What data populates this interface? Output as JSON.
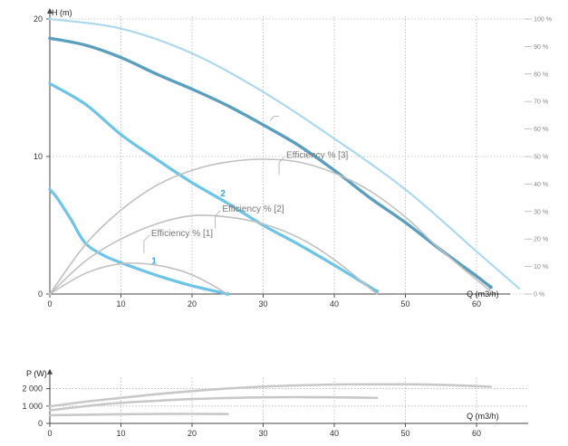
{
  "chart_data": [
    {
      "type": "line",
      "xlabel": "Q (m3/h)",
      "ylabel": "H (m)",
      "xlim": [
        0,
        66
      ],
      "ylim": [
        0,
        20
      ],
      "x_ticks": [
        "0",
        "10",
        "20",
        "30",
        "40",
        "50",
        "60"
      ],
      "y_ticks": [
        "0",
        "10",
        "20"
      ],
      "right_axis_ticks": [
        "0 %",
        "10 %",
        "20 %",
        "30 %",
        "40 %",
        "50 %",
        "60 %",
        "70 %",
        "80 %",
        "90 %",
        "100 %"
      ],
      "grid": true,
      "colors": {
        "pump": "#6cc4e8",
        "pump_outer": "#5a9fc0",
        "efficiency": "#c0c0c0",
        "max_curve": "#a9d8ef"
      },
      "annotations": [
        {
          "label": "Efficiency % [1]",
          "x": 14,
          "y": 4.4
        },
        {
          "label": "Efficiency % [2]",
          "x": 24,
          "y": 6.2
        },
        {
          "label": "Efficiency % [3]",
          "x": 33,
          "y": 10.1
        }
      ],
      "series": [
        {
          "name": "1",
          "role": "pump",
          "label_at": [
            14.3,
            2.2
          ],
          "x": [
            0,
            1,
            3,
            5,
            8,
            12,
            16,
            20,
            25
          ],
          "y": [
            7.6,
            7.0,
            5.4,
            3.7,
            2.7,
            1.9,
            1.2,
            0.6,
            0
          ]
        },
        {
          "name": "2",
          "role": "pump",
          "label_at": [
            24,
            7.1
          ],
          "x": [
            0,
            5,
            10,
            15,
            20,
            25,
            30,
            35,
            40,
            46
          ],
          "y": [
            15.3,
            13.8,
            11.6,
            9.8,
            8.1,
            6.6,
            5.0,
            3.6,
            2.1,
            0.2
          ]
        },
        {
          "name": "",
          "role": "pump-max",
          "x": [
            0,
            5,
            10,
            15,
            20,
            25,
            30,
            35,
            40,
            45,
            50,
            55,
            60,
            62
          ],
          "y": [
            18.6,
            18.1,
            17.2,
            16.0,
            14.9,
            13.7,
            12.3,
            10.8,
            9.0,
            7.0,
            5.2,
            3.2,
            1.3,
            0.5
          ]
        },
        {
          "name": "",
          "role": "max-curve",
          "x": [
            0,
            10,
            20,
            30,
            40,
            50,
            60,
            66
          ],
          "y": [
            20,
            19.3,
            17.5,
            14.7,
            11.3,
            7.6,
            3.1,
            0.4
          ]
        },
        {
          "name": "",
          "role": "efficiency-1",
          "x": [
            0,
            5,
            10,
            15,
            20,
            25
          ],
          "y": [
            0,
            1.5,
            2.2,
            2.1,
            1.4,
            0
          ]
        },
        {
          "name": "",
          "role": "efficiency-2",
          "x": [
            0,
            5,
            10,
            15,
            20,
            25,
            30,
            35,
            40,
            46
          ],
          "y": [
            0,
            2.4,
            4.0,
            5.1,
            5.7,
            5.6,
            5.1,
            4.1,
            2.5,
            0
          ]
        },
        {
          "name": "",
          "role": "efficiency-3",
          "x": [
            0,
            5,
            10,
            15,
            20,
            25,
            30,
            35,
            40,
            45,
            50,
            55,
            62
          ],
          "y": [
            0,
            3.6,
            6.1,
            7.9,
            9.0,
            9.6,
            9.8,
            9.6,
            8.8,
            7.5,
            5.6,
            3.2,
            0.2
          ]
        }
      ]
    },
    {
      "type": "line",
      "xlabel": "Q (m3/h)",
      "ylabel": "P (W)",
      "xlim": [
        0,
        66
      ],
      "ylim": [
        0,
        2200
      ],
      "x_ticks": [
        "0",
        "10",
        "20",
        "30",
        "40",
        "50",
        "60"
      ],
      "y_ticks": [
        "0",
        "1 000",
        "2 000"
      ],
      "grid": true,
      "colors": {
        "power": "#c8c8c8"
      },
      "series": [
        {
          "name": "",
          "role": "power-1",
          "x": [
            0,
            5,
            10,
            15,
            20,
            25
          ],
          "y": [
            470,
            500,
            525,
            540,
            545,
            535
          ]
        },
        {
          "name": "",
          "role": "power-2",
          "x": [
            0,
            5,
            10,
            15,
            20,
            25,
            30,
            35,
            40,
            46
          ],
          "y": [
            750,
            990,
            1180,
            1300,
            1400,
            1460,
            1500,
            1510,
            1500,
            1470
          ]
        },
        {
          "name": "",
          "role": "power-3",
          "x": [
            0,
            5,
            10,
            15,
            20,
            25,
            30,
            35,
            40,
            45,
            50,
            55,
            62
          ],
          "y": [
            980,
            1250,
            1470,
            1680,
            1860,
            2010,
            2120,
            2190,
            2240,
            2250,
            2250,
            2220,
            2110
          ]
        }
      ]
    }
  ]
}
